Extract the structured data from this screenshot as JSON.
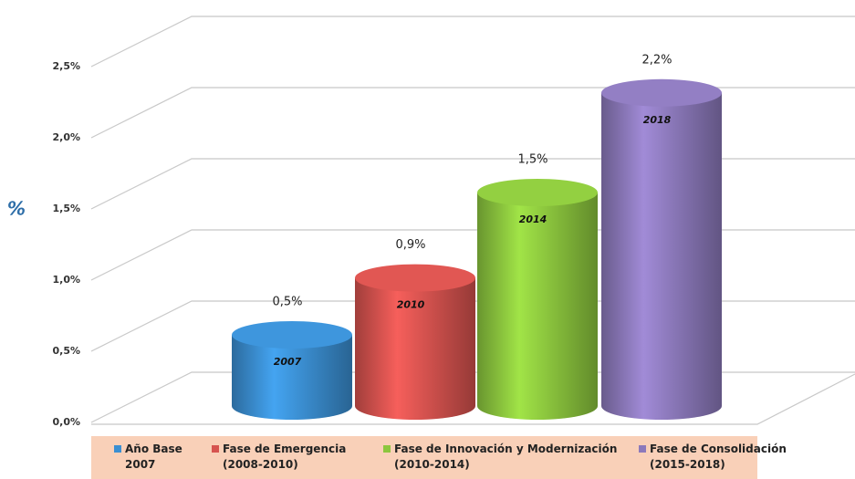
{
  "chart_data": {
    "type": "bar",
    "y_label": "%",
    "categories": [
      "2007",
      "2010",
      "2014",
      "2018"
    ],
    "values": [
      0.5,
      0.9,
      1.5,
      2.2
    ],
    "value_labels": [
      "0,5%",
      "0,9%",
      "1,5%",
      "2,2%"
    ],
    "colors": [
      "#3b8fd2",
      "#d6534f",
      "#8cc63e",
      "#8c79bb"
    ],
    "legend": [
      "Año Base 2007",
      "Fase de Emergencia (2008-2010)",
      "Fase de Innovación y Modernización (2010-2014)",
      "Fase de Consolidación (2015-2018)"
    ],
    "ylim": [
      0,
      2.5
    ],
    "yticks": [
      {
        "value": 0,
        "label": "0,0%"
      },
      {
        "value": 0.5,
        "label": "0,5%"
      },
      {
        "value": 1,
        "label": "1,0%"
      },
      {
        "value": 1.5,
        "label": "1,5%"
      },
      {
        "value": 2,
        "label": "2,0%"
      },
      {
        "value": 2.5,
        "label": "2,5%"
      }
    ],
    "grid": true
  }
}
